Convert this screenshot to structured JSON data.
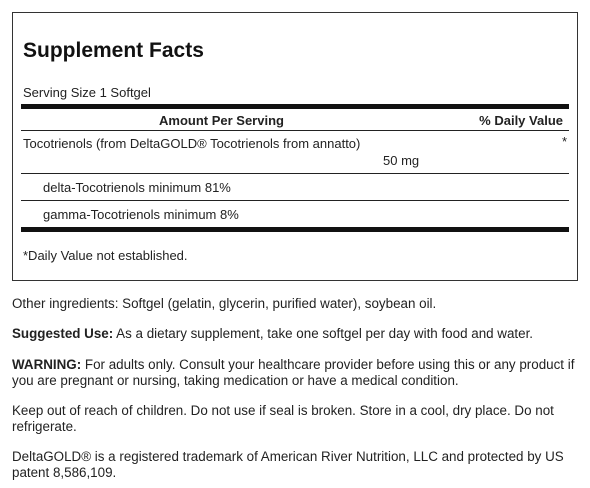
{
  "facts": {
    "title": "Supplement Facts",
    "serving_size": "Serving Size 1 Softgel",
    "header_amount": "Amount Per Serving",
    "header_dv": "% Daily Value",
    "item_name": "Tocotrienols (from DeltaGOLD® Tocotrienols from annatto)",
    "item_amount": "50 mg",
    "item_dv": "*",
    "sub_items": [
      "delta-Tocotrienols minimum 81%",
      "gamma-Tocotrienols minimum 8%"
    ],
    "footnote": "*Daily Value not established."
  },
  "other_ingredients": "Other ingredients: Softgel (gelatin, glycerin, purified water), soybean oil.",
  "suggested_use": {
    "label": "Suggested Use:",
    "text": " As a dietary supplement, take one softgel per day with food and water."
  },
  "warning": {
    "label": "WARNING:",
    "text": " For adults only. Consult your healthcare provider before using this or any product if you are pregnant or nursing, taking medication or have a medical condition."
  },
  "storage": "Keep out of reach of children. Do not use if seal is broken. Store in a cool, dry place. Do not refrigerate.",
  "trademark": "DeltaGOLD® is a registered trademark of American River Nutrition, LLC and protected by US patent 8,586,109."
}
